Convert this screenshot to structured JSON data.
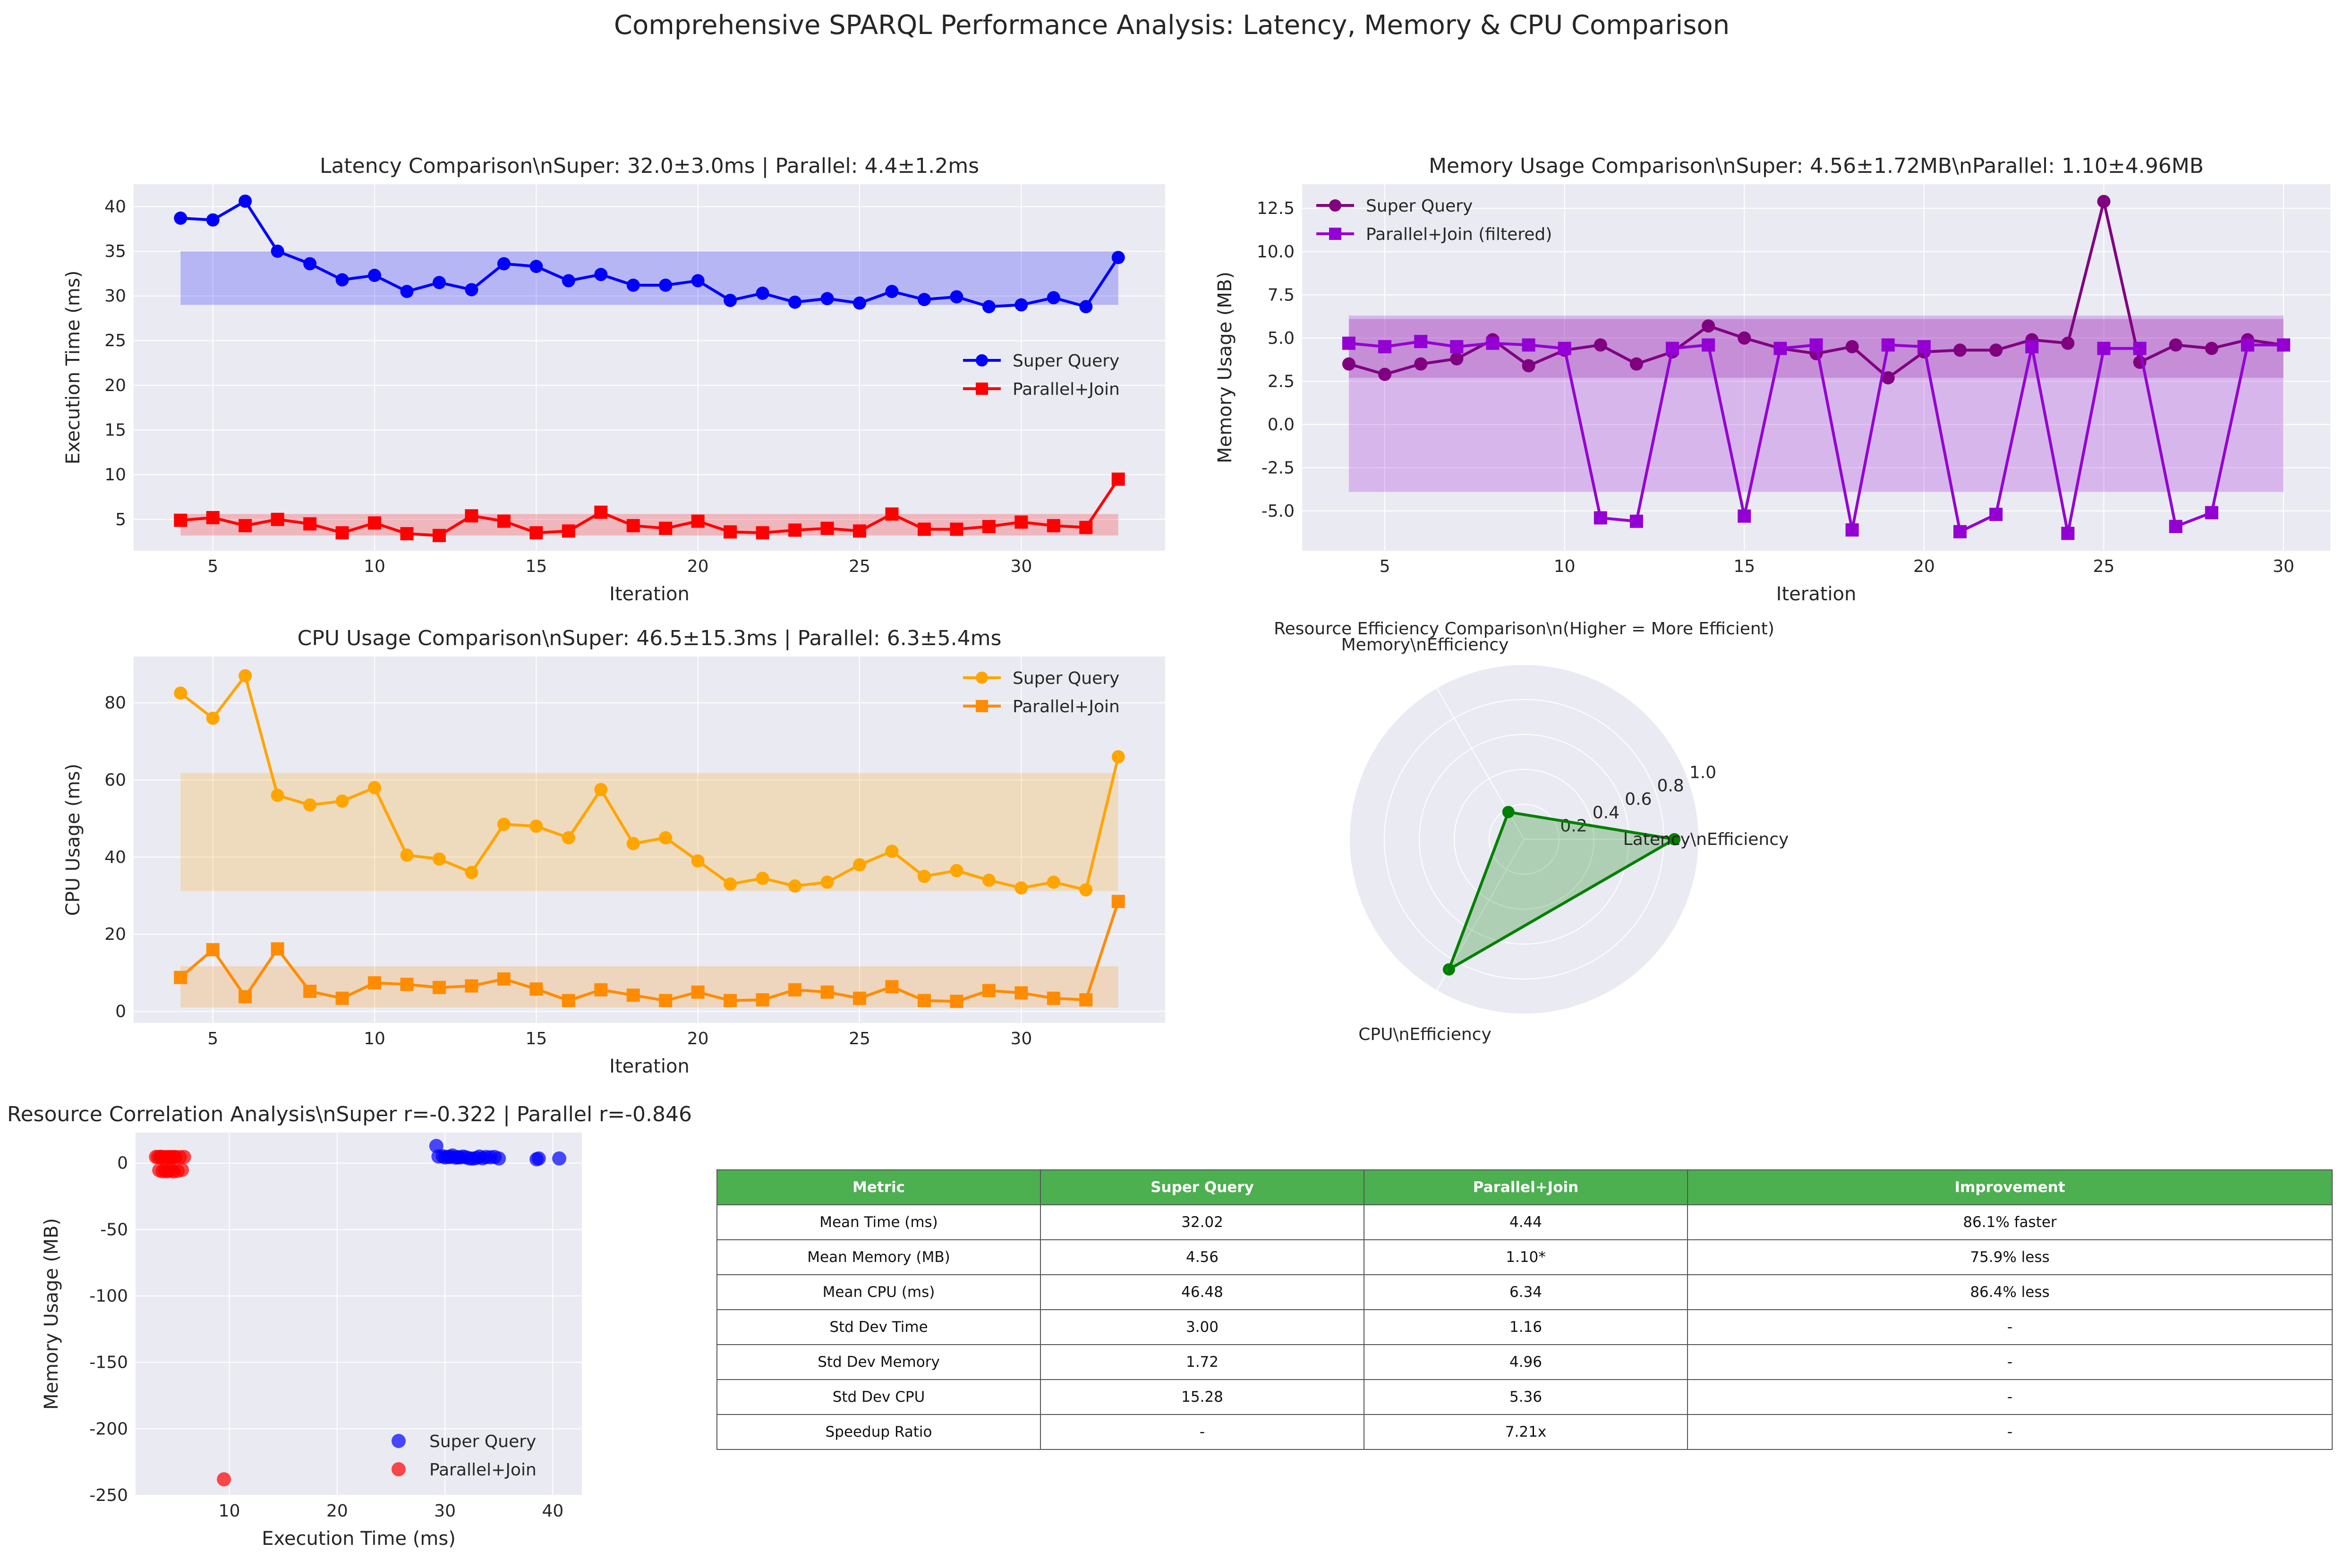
{
  "figure_title": "Comprehensive SPARQL Performance Analysis: Latency, Memory & CPU Comparison",
  "colors": {
    "super_latency": "#0000ff",
    "parallel_latency": "#ff0000",
    "super_memory": "#800080",
    "parallel_memory": "#9400d3",
    "super_cpu": "#ffa500",
    "parallel_cpu": "#ff8c00",
    "radar": "#008000",
    "table_header": "#4caf50"
  },
  "chart_data": [
    {
      "type": "line",
      "title": "Latency Comparison\\nSuper: 32.0±3.0ms | Parallel: 4.4±1.2ms",
      "xlabel": "Iteration",
      "ylabel": "Execution Time (ms)",
      "xlim": [
        2.55,
        34.45
      ],
      "ylim": [
        1.5,
        42.5
      ],
      "xticks": [
        5,
        10,
        15,
        20,
        25,
        30
      ],
      "yticks": [
        5,
        10,
        15,
        20,
        25,
        30,
        35,
        40
      ],
      "grid": true,
      "legend_position": "center-right",
      "x": [
        4,
        5,
        6,
        7,
        8,
        9,
        10,
        11,
        12,
        13,
        14,
        15,
        16,
        17,
        18,
        19,
        20,
        21,
        22,
        23,
        24,
        25,
        26,
        27,
        28,
        29,
        30,
        31,
        32,
        33
      ],
      "series": [
        {
          "name": "Super Query",
          "marker": "circle",
          "color": "#0000ff",
          "values": [
            38.7,
            38.5,
            40.6,
            35.0,
            33.6,
            31.8,
            32.3,
            30.5,
            31.5,
            30.7,
            33.6,
            33.3,
            31.7,
            32.4,
            31.2,
            31.2,
            31.7,
            29.5,
            30.3,
            29.3,
            29.7,
            29.2,
            30.5,
            29.6,
            29.9,
            28.8,
            29.0,
            29.8,
            28.8,
            34.3
          ],
          "band": [
            29.0,
            35.0
          ]
        },
        {
          "name": "Parallel+Join",
          "marker": "square",
          "color": "#ff0000",
          "values": [
            4.9,
            5.2,
            4.3,
            5.0,
            4.5,
            3.5,
            4.6,
            3.4,
            3.2,
            5.4,
            4.8,
            3.5,
            3.7,
            5.8,
            4.3,
            4.0,
            4.8,
            3.6,
            3.5,
            3.8,
            4.0,
            3.7,
            5.6,
            3.9,
            3.9,
            4.2,
            4.7,
            4.3,
            4.1,
            9.5
          ],
          "band": [
            3.2,
            5.6
          ]
        }
      ]
    },
    {
      "type": "line",
      "title": "Memory Usage Comparison\\nSuper: 4.56±1.72MB\\nParallel: 1.10±4.96MB",
      "xlabel": "Iteration",
      "ylabel": "Memory Usage (MB)",
      "xlim": [
        2.7,
        31.3
      ],
      "ylim": [
        -7.3,
        13.9
      ],
      "xticks": [
        5,
        10,
        15,
        20,
        25,
        30
      ],
      "yticks": [
        -5.0,
        -2.5,
        0.0,
        2.5,
        5.0,
        7.5,
        10.0,
        12.5
      ],
      "grid": true,
      "legend_position": "top-left",
      "x": [
        4,
        5,
        6,
        7,
        8,
        9,
        10,
        11,
        12,
        13,
        14,
        15,
        16,
        17,
        18,
        19,
        20,
        21,
        22,
        23,
        24,
        25,
        26,
        27,
        28,
        29,
        30
      ],
      "series": [
        {
          "name": "Super Query",
          "marker": "circle",
          "color": "#800080",
          "values": [
            3.5,
            2.9,
            3.5,
            3.8,
            4.9,
            3.4,
            4.3,
            4.6,
            3.5,
            4.2,
            5.7,
            5.0,
            4.4,
            4.1,
            4.5,
            2.7,
            4.2,
            4.3,
            4.3,
            4.9,
            4.7,
            12.9,
            3.6,
            4.6,
            4.4,
            4.9,
            4.6
          ],
          "band": [
            2.7,
            6.1
          ]
        },
        {
          "name": "Parallel+Join (filtered)",
          "marker": "square",
          "color": "#9400d3",
          "values": [
            4.7,
            4.5,
            4.8,
            4.5,
            4.7,
            4.6,
            4.4,
            -5.4,
            -5.6,
            4.4,
            4.6,
            -5.3,
            4.4,
            4.6,
            -6.1,
            4.6,
            4.5,
            -6.2,
            -5.2,
            4.5,
            -6.3,
            4.4,
            4.4,
            -5.9,
            -5.1,
            4.6,
            4.6
          ],
          "band": [
            -3.9,
            6.3
          ]
        }
      ]
    },
    {
      "type": "line",
      "title": "CPU Usage Comparison\\nSuper: 46.5±15.3ms | Parallel: 6.3±5.4ms",
      "xlabel": "Iteration",
      "ylabel": "CPU Usage (ms)",
      "xlim": [
        2.55,
        34.45
      ],
      "ylim": [
        -3,
        92
      ],
      "xticks": [
        5,
        10,
        15,
        20,
        25,
        30
      ],
      "yticks": [
        0,
        20,
        40,
        60,
        80
      ],
      "grid": true,
      "legend_position": "top-right",
      "x": [
        4,
        5,
        6,
        7,
        8,
        9,
        10,
        11,
        12,
        13,
        14,
        15,
        16,
        17,
        18,
        19,
        20,
        21,
        22,
        23,
        24,
        25,
        26,
        27,
        28,
        29,
        30,
        31,
        32,
        33
      ],
      "series": [
        {
          "name": "Super Query",
          "marker": "circle",
          "color": "#ffa500",
          "values": [
            82.5,
            76,
            87,
            56,
            53.5,
            54.5,
            58,
            40.5,
            39.5,
            36,
            48.5,
            48,
            45,
            57.5,
            43.5,
            45,
            39,
            33,
            34.5,
            32.5,
            33.5,
            38,
            41.5,
            35,
            36.5,
            34,
            32,
            33.5,
            31.5,
            66
          ],
          "band": [
            31.2,
            61.8
          ]
        },
        {
          "name": "Parallel+Join",
          "marker": "square",
          "color": "#ff8c00",
          "values": [
            8.8,
            16,
            3.8,
            16.2,
            5.2,
            3.4,
            7.4,
            7,
            6.2,
            6.6,
            8.4,
            5.8,
            2.8,
            5.6,
            4.2,
            2.8,
            5,
            2.8,
            3,
            5.6,
            5,
            3.4,
            6.4,
            2.8,
            2.6,
            5.4,
            4.8,
            3.4,
            3,
            28.5
          ],
          "band": [
            1,
            11.7
          ]
        }
      ]
    },
    {
      "type": "radar",
      "title": "Resource Efficiency Comparison\\n(Higher = More Efficient)",
      "axes": [
        "Latency\\nEfficiency",
        "Memory\\nEfficiency",
        "CPU\\nEfficiency"
      ],
      "rticks": [
        "0.2",
        "0.4",
        "0.6",
        "0.8",
        "1.0"
      ],
      "rlim": [
        0,
        1.0
      ],
      "values": [
        0.86,
        0.18,
        0.86
      ]
    },
    {
      "type": "scatter",
      "title": "Resource Correlation Analysis\\nSuper r=-0.322 | Parallel r=-0.846",
      "xlabel": "Execution Time (ms)",
      "ylabel": "Memory Usage (MB)",
      "xlim": [
        1.3,
        42.7
      ],
      "ylim": [
        -250,
        23
      ],
      "xticks": [
        10,
        20,
        30,
        40
      ],
      "yticks": [
        0,
        -50,
        -100,
        -150,
        -200,
        -250
      ],
      "grid": true,
      "legend_position": "bottom-right",
      "series": [
        {
          "name": "Super Query",
          "color": "#0000ff",
          "points": [
            [
              29.2,
              12.9
            ],
            [
              29.4,
              5.0
            ],
            [
              29.8,
              5.2
            ],
            [
              30.0,
              4.3
            ],
            [
              30.3,
              4.7
            ],
            [
              30.5,
              4.6
            ],
            [
              30.7,
              5.7
            ],
            [
              31.0,
              4.1
            ],
            [
              31.2,
              4.5
            ],
            [
              31.4,
              4.3
            ],
            [
              31.7,
              4.9
            ],
            [
              32.0,
              4.2
            ],
            [
              32.3,
              3.5
            ],
            [
              32.6,
              3.4
            ],
            [
              32.9,
              3.8
            ],
            [
              33.2,
              4.9
            ],
            [
              33.5,
              3.6
            ],
            [
              33.8,
              4.6
            ],
            [
              34.2,
              4.4
            ],
            [
              34.6,
              4.6
            ],
            [
              35.0,
              3.5
            ],
            [
              38.5,
              2.9
            ],
            [
              38.7,
              3.5
            ],
            [
              40.6,
              3.5
            ]
          ]
        },
        {
          "name": "Parallel+Join",
          "color": "#ff0000",
          "points": [
            [
              3.2,
              4.7
            ],
            [
              3.4,
              4.5
            ],
            [
              3.5,
              -5.4
            ],
            [
              3.6,
              4.8
            ],
            [
              3.7,
              4.4
            ],
            [
              3.8,
              -6.1
            ],
            [
              3.9,
              4.6
            ],
            [
              4.0,
              -5.2
            ],
            [
              4.1,
              4.4
            ],
            [
              4.2,
              -6.2
            ],
            [
              4.3,
              4.6
            ],
            [
              4.4,
              -5.6
            ],
            [
              4.5,
              4.5
            ],
            [
              4.6,
              -5.3
            ],
            [
              4.7,
              4.6
            ],
            [
              4.8,
              -6.3
            ],
            [
              4.9,
              4.4
            ],
            [
              5.0,
              4.6
            ],
            [
              5.2,
              -5.9
            ],
            [
              5.4,
              4.5
            ],
            [
              5.6,
              -5.1
            ],
            [
              5.8,
              4.6
            ],
            [
              9.5,
              -238
            ]
          ]
        }
      ]
    }
  ],
  "table": {
    "headers": [
      "Metric",
      "Super Query",
      "Parallel+Join",
      "Improvement"
    ],
    "rows": [
      [
        "Mean Time (ms)",
        "32.02",
        "4.44",
        "86.1% faster"
      ],
      [
        "Mean Memory (MB)",
        "4.56",
        "1.10*",
        "75.9% less"
      ],
      [
        "Mean CPU (ms)",
        "46.48",
        "6.34",
        "86.4% less"
      ],
      [
        "Std Dev Time",
        "3.00",
        "1.16",
        "-"
      ],
      [
        "Std Dev Memory",
        "1.72",
        "4.96",
        "-"
      ],
      [
        "Std Dev CPU",
        "15.28",
        "5.36",
        "-"
      ],
      [
        "Speedup Ratio",
        "-",
        "7.21x",
        "-"
      ]
    ]
  }
}
